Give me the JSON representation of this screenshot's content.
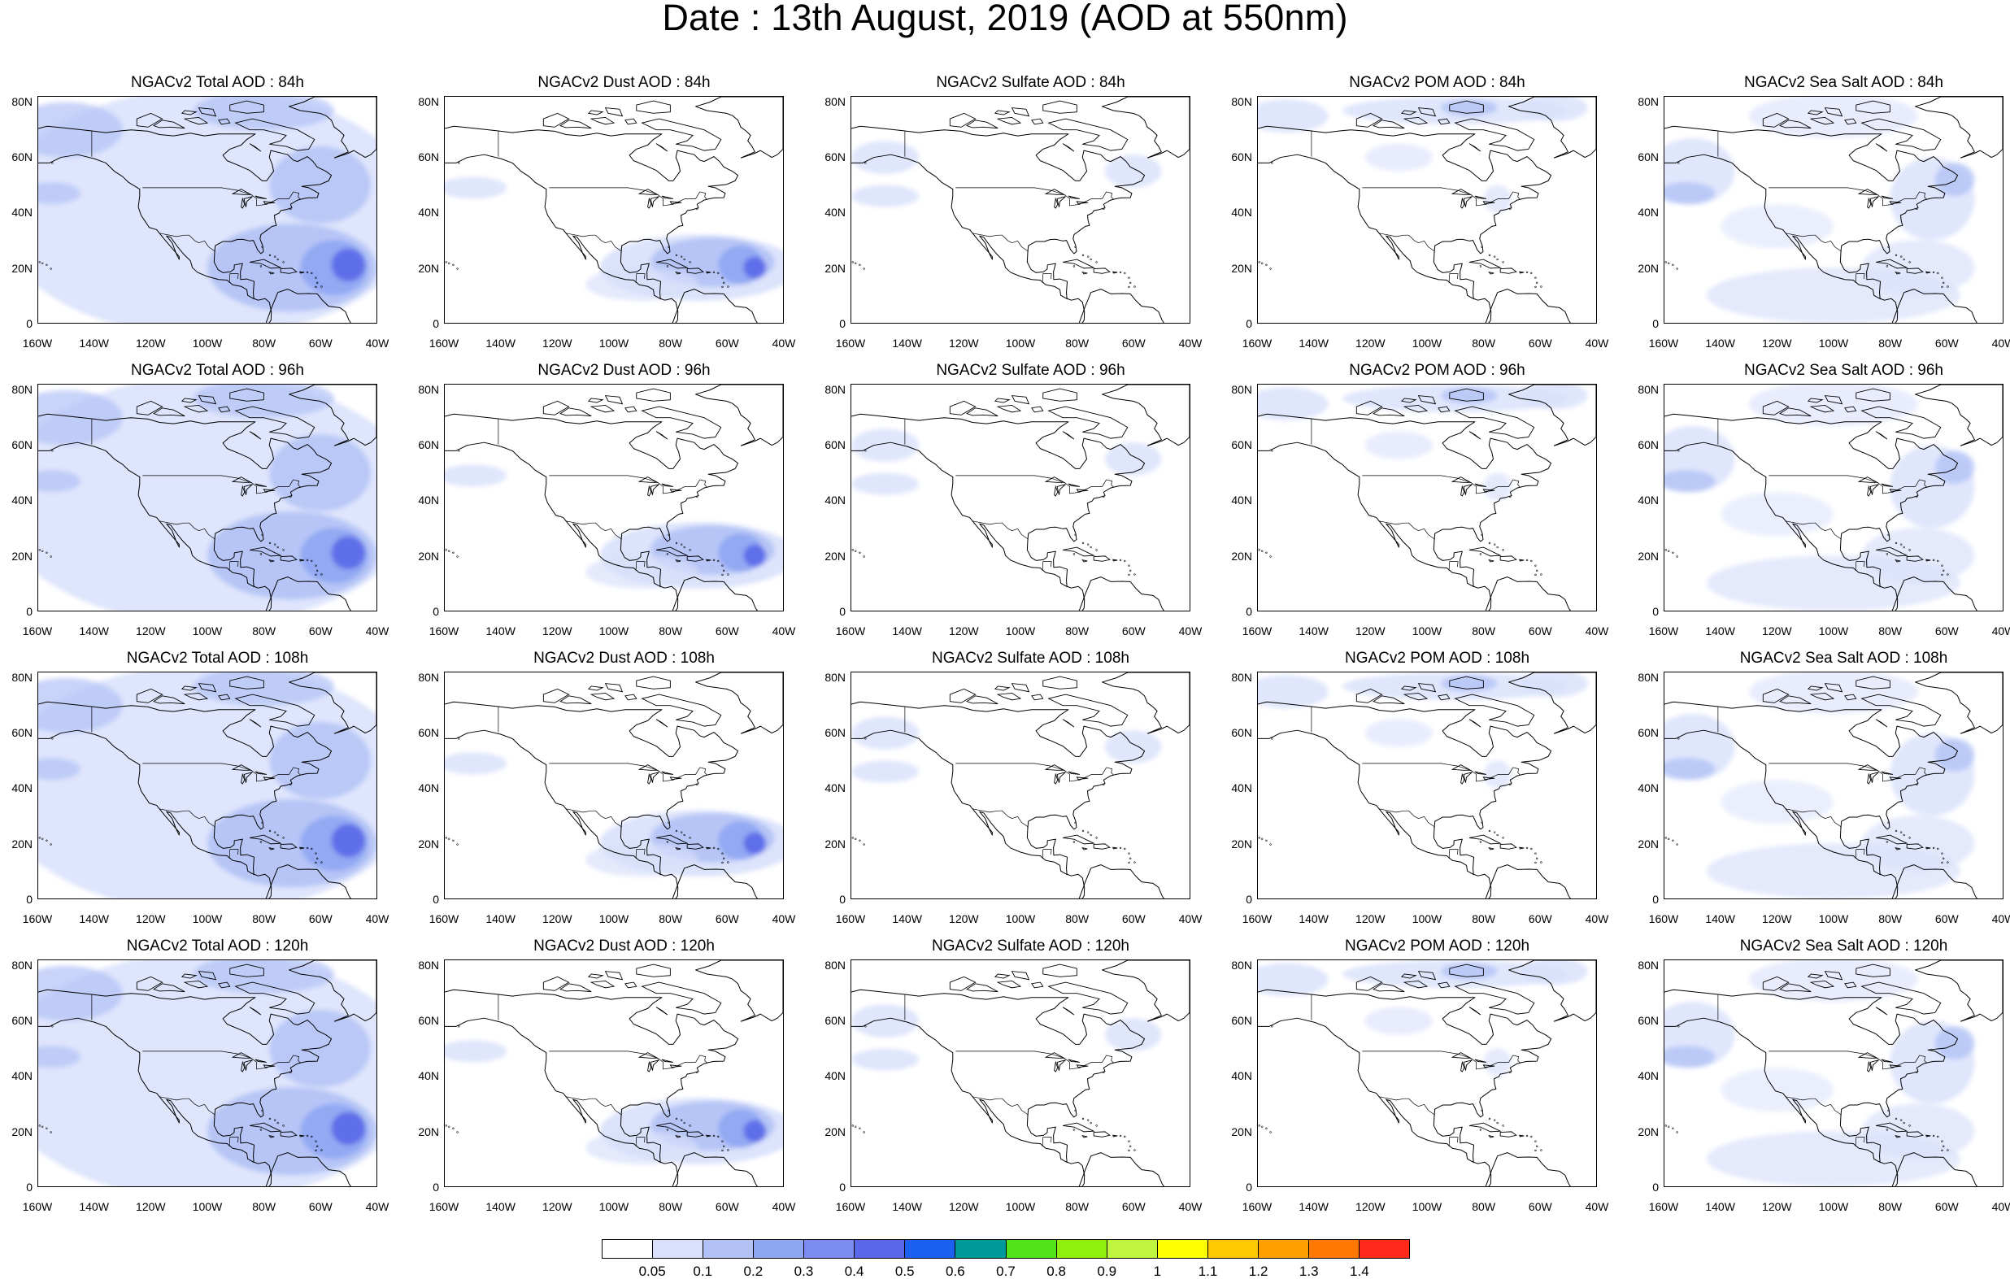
{
  "title": "Date : 13th August, 2019 (AOD at 550nm)",
  "axes": {
    "lat_ticks": [
      "80N",
      "60N",
      "40N",
      "20N",
      "0"
    ],
    "lon_ticks": [
      "160W",
      "140W",
      "120W",
      "100W",
      "80W",
      "60W",
      "40W"
    ]
  },
  "panels": [
    {
      "title": "NGACv2 Total AOD : 84h",
      "species": "total",
      "lead": "84h"
    },
    {
      "title": "NGACv2 Dust AOD : 84h",
      "species": "dust",
      "lead": "84h"
    },
    {
      "title": "NGACv2 Sulfate AOD : 84h",
      "species": "sulfate",
      "lead": "84h"
    },
    {
      "title": "NGACv2 POM AOD : 84h",
      "species": "pom",
      "lead": "84h"
    },
    {
      "title": "NGACv2 Sea Salt AOD : 84h",
      "species": "seasalt",
      "lead": "84h"
    },
    {
      "title": "NGACv2 Total AOD : 96h",
      "species": "total",
      "lead": "96h"
    },
    {
      "title": "NGACv2 Dust AOD : 96h",
      "species": "dust",
      "lead": "96h"
    },
    {
      "title": "NGACv2 Sulfate AOD : 96h",
      "species": "sulfate",
      "lead": "96h"
    },
    {
      "title": "NGACv2 POM AOD : 96h",
      "species": "pom",
      "lead": "96h"
    },
    {
      "title": "NGACv2 Sea Salt AOD : 96h",
      "species": "seasalt",
      "lead": "96h"
    },
    {
      "title": "NGACv2 Total AOD : 108h",
      "species": "total",
      "lead": "108h"
    },
    {
      "title": "NGACv2 Dust AOD : 108h",
      "species": "dust",
      "lead": "108h"
    },
    {
      "title": "NGACv2 Sulfate AOD : 108h",
      "species": "sulfate",
      "lead": "108h"
    },
    {
      "title": "NGACv2 POM AOD : 108h",
      "species": "pom",
      "lead": "108h"
    },
    {
      "title": "NGACv2 Sea Salt AOD : 108h",
      "species": "seasalt",
      "lead": "108h"
    },
    {
      "title": "NGACv2 Total AOD : 120h",
      "species": "total",
      "lead": "120h"
    },
    {
      "title": "NGACv2 Dust AOD : 120h",
      "species": "dust",
      "lead": "120h"
    },
    {
      "title": "NGACv2 Sulfate AOD : 120h",
      "species": "sulfate",
      "lead": "120h"
    },
    {
      "title": "NGACv2 POM AOD : 120h",
      "species": "pom",
      "lead": "120h"
    },
    {
      "title": "NGACv2 Sea Salt  AOD : 120h",
      "species": "seasalt",
      "lead": "120h"
    }
  ],
  "colorbar": {
    "labels": [
      "0.05",
      "0.1",
      "0.2",
      "0.3",
      "0.4",
      "0.5",
      "0.6",
      "0.7",
      "0.8",
      "0.9",
      "1",
      "1.1",
      "1.2",
      "1.3",
      "1.4"
    ],
    "colors": [
      "#ffffff",
      "#d8e0fb",
      "#b2c2f6",
      "#8fa6f3",
      "#7c8cf0",
      "#5a67e8",
      "#1b60f0",
      "#009898",
      "#52e41b",
      "#8ff00b",
      "#bff53f",
      "#ffff00",
      "#ffc800",
      "#ffa000",
      "#ff7800",
      "#ff2a1a"
    ]
  }
}
